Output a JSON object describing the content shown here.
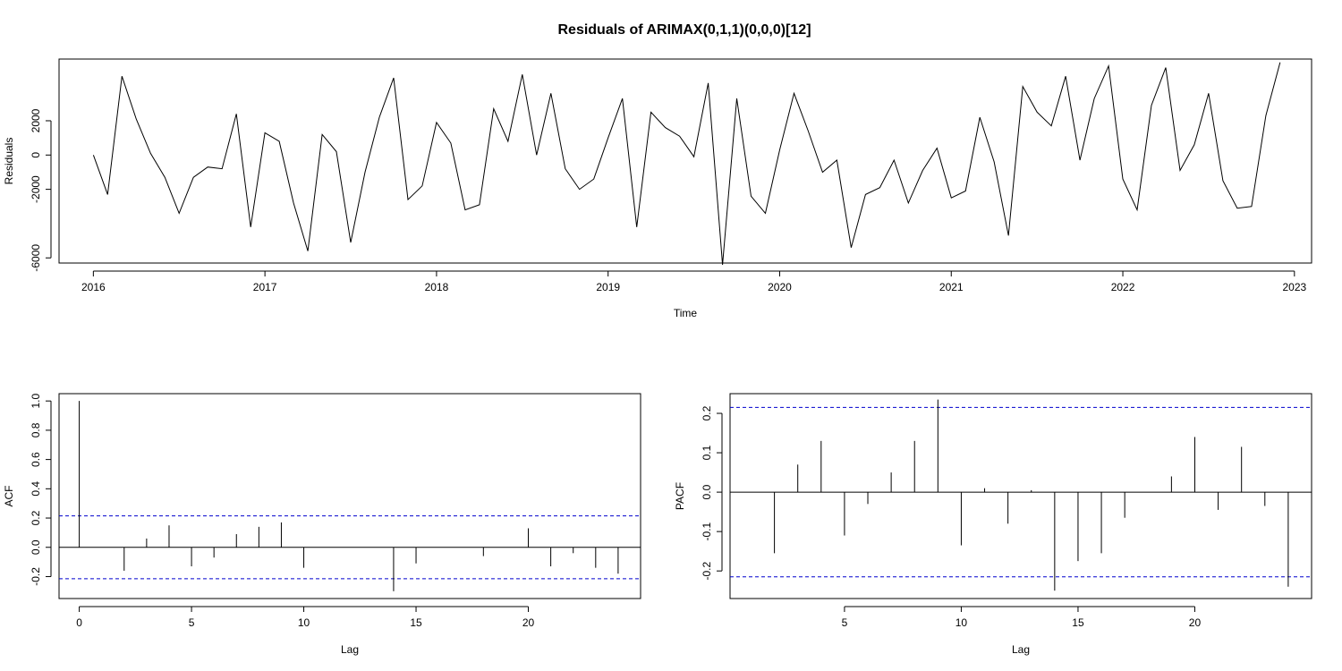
{
  "title": "Residuals of ARIMAX(0,1,1)(0,0,0)[12]",
  "ci_color": "#0000CD",
  "chart_data": [
    {
      "type": "line",
      "xlabel": "Time",
      "ylabel": "Residuals",
      "xlim": [
        2015.8,
        2023.1
      ],
      "ylim": [
        -6300,
        5600
      ],
      "xticks": [
        2016,
        2017,
        2018,
        2019,
        2020,
        2021,
        2022,
        2023
      ],
      "yticks": [
        -6000,
        -2000,
        0,
        2000
      ],
      "start": 2016,
      "frequency": 12,
      "values": [
        0,
        -2300,
        4600,
        2100,
        100,
        -1300,
        -3400,
        -1300,
        -700,
        -800,
        2400,
        -4200,
        1300,
        800,
        -2800,
        -5600,
        1200,
        200,
        -5100,
        -1000,
        2200,
        4500,
        -2600,
        -1800,
        1900,
        700,
        -3200,
        -2900,
        2700,
        800,
        4700,
        0,
        3600,
        -800,
        -2000,
        -1400,
        1000,
        3300,
        -4200,
        2500,
        1600,
        1100,
        -100,
        4200,
        -6400,
        3300,
        -2400,
        -3400,
        300,
        3600,
        1400,
        -1000,
        -300,
        -5400,
        -2300,
        -1900,
        -300,
        -2800,
        -900,
        400,
        -2500,
        -2100,
        2200,
        -400,
        -4700,
        4000,
        2500,
        1700,
        4600,
        -300,
        3300,
        5200,
        -1400,
        -3200,
        2900,
        5100,
        -900,
        600,
        3600,
        -1500,
        -3100,
        -3000,
        2300,
        5400
      ]
    },
    {
      "type": "bar",
      "xlabel": "Lag",
      "ylabel": "ACF",
      "xlim": [
        -0.9,
        25
      ],
      "ylim": [
        -0.35,
        1.05
      ],
      "xticks": [
        0,
        5,
        10,
        15,
        20
      ],
      "yticks": [
        -0.2,
        0.0,
        0.2,
        0.4,
        0.6,
        0.8,
        1.0
      ],
      "ci": 0.215,
      "lags": [
        0,
        1,
        2,
        3,
        4,
        5,
        6,
        7,
        8,
        9,
        10,
        11,
        12,
        13,
        14,
        15,
        16,
        17,
        18,
        19,
        20,
        21,
        22,
        23,
        24
      ],
      "values": [
        1.0,
        0.0,
        -0.16,
        0.06,
        0.15,
        -0.13,
        -0.07,
        0.09,
        0.14,
        0.17,
        -0.14,
        0.0,
        0.0,
        0.0,
        -0.3,
        -0.11,
        0.0,
        0.0,
        -0.06,
        0.0,
        0.13,
        -0.13,
        -0.04,
        -0.14,
        -0.18
      ]
    },
    {
      "type": "bar",
      "xlabel": "Lag",
      "ylabel": "PACF",
      "xlim": [
        0.1,
        25
      ],
      "ylim": [
        -0.27,
        0.25
      ],
      "xticks": [
        5,
        10,
        15,
        20
      ],
      "yticks": [
        -0.2,
        -0.1,
        0.0,
        0.1,
        0.2
      ],
      "ci": 0.215,
      "lags": [
        1,
        2,
        3,
        4,
        5,
        6,
        7,
        8,
        9,
        10,
        11,
        12,
        13,
        14,
        15,
        16,
        17,
        18,
        19,
        20,
        21,
        22,
        23,
        24
      ],
      "values": [
        0.0,
        -0.155,
        0.07,
        0.13,
        -0.11,
        -0.03,
        0.05,
        0.13,
        0.235,
        -0.135,
        0.01,
        -0.08,
        0.005,
        -0.25,
        -0.175,
        -0.155,
        -0.065,
        0.0,
        0.04,
        0.14,
        -0.045,
        0.115,
        -0.035,
        -0.24
      ]
    }
  ]
}
